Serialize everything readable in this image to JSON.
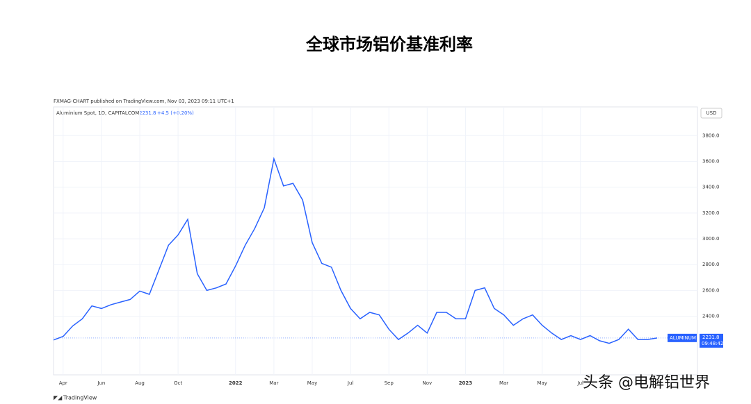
{
  "chart_data": {
    "type": "line",
    "title": "全球市场铝价基准利率",
    "published": "FXMAG-CHART published on TradingView.com, Nov 03, 2023 09:11 UTC+1",
    "symbol": "Aluminium Spot, 1D, CAPITALCOM",
    "change": "+4.5 (+0.20%)",
    "currency": "USD",
    "price_tag": "ALUMINUM",
    "countdown": "09:48:42",
    "watermark": "头条 @电解铝世界",
    "footer": "TradingView",
    "color": "#2962ff",
    "categories": [
      null,
      "Apr",
      null,
      null,
      null,
      "Jun",
      null,
      null,
      null,
      "Aug",
      null,
      null,
      null,
      "Oct",
      null,
      null,
      null,
      null,
      null,
      "2022",
      null,
      null,
      null,
      "Mar",
      null,
      null,
      null,
      "May",
      null,
      null,
      null,
      "Jul",
      null,
      null,
      null,
      "Sep",
      null,
      null,
      null,
      "Nov",
      null,
      null,
      null,
      "2023",
      null,
      null,
      null,
      "Mar",
      null,
      null,
      null,
      "May",
      null,
      null,
      null,
      "Jul",
      null,
      null,
      null,
      null,
      null,
      null,
      null,
      null
    ],
    "values": [
      2216,
      2244,
      2325,
      2380,
      2480,
      2460,
      2490,
      2510,
      2530,
      2595,
      2570,
      2760,
      2950,
      3030,
      3150,
      2730,
      2600,
      2620,
      2650,
      2790,
      2950,
      3080,
      3240,
      3620,
      3410,
      3430,
      3300,
      2970,
      2810,
      2780,
      2600,
      2460,
      2380,
      2430,
      2410,
      2300,
      2220,
      2270,
      2330,
      2270,
      2430,
      2430,
      2380,
      2380,
      2600,
      2620,
      2460,
      2410,
      2330,
      2380,
      2410,
      2330,
      2270,
      2220,
      2250,
      2220,
      2250,
      2210,
      2190,
      2220,
      2300,
      2220,
      2220,
      2231.8
    ],
    "ylim": [
      1946,
      4022
    ],
    "yticks": [
      {
        "value": 2400,
        "label": "2400.0"
      },
      {
        "value": 2600,
        "label": "2600.0"
      },
      {
        "value": 2800,
        "label": "2800.0"
      },
      {
        "value": 3000,
        "label": "3000.0"
      },
      {
        "value": 3200,
        "label": "3200.0"
      },
      {
        "value": 3400,
        "label": "3400.0"
      },
      {
        "value": 3600,
        "label": "3600.0"
      },
      {
        "value": 3800,
        "label": "3800.0"
      }
    ],
    "grid": true
  }
}
